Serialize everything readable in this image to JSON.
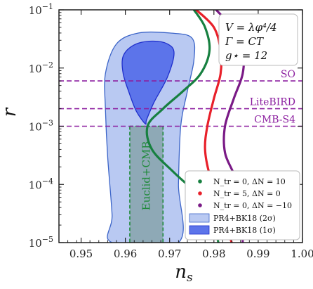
{
  "chart_data": {
    "type": "line",
    "xlabel": "n_s",
    "ylabel": "r",
    "xlim": [
      0.945,
      1.0
    ],
    "ylim_log10": [
      -5,
      -1
    ],
    "yscale": "log",
    "x_ticks": [
      "0.95",
      "0.96",
      "0.97",
      "0.98",
      "0.99",
      "1.00"
    ],
    "x_tick_values": [
      0.95,
      0.96,
      0.97,
      0.98,
      0.99,
      1.0
    ],
    "y_tick_exponents": [
      -5,
      -4,
      -3,
      -2,
      -1
    ],
    "model_box": [
      "V = λφ⁴/4",
      "Γ = CT",
      "g⋆ = 12"
    ],
    "colors": {
      "green": "#178040",
      "red": "#e8202a",
      "purple": "#7a1a86",
      "band2": "#b9c9f2",
      "band2_edge": "#3b64c8",
      "band1": "#5c74ea",
      "band1_edge": "#1f2fcc",
      "euclid_fill": "#86a3ab",
      "euclid_edge": "#1f8a3a",
      "line_dashed": "#8c1fa0"
    },
    "hlines": [
      {
        "label": "SO",
        "r": 0.006
      },
      {
        "label": "LiteBIRD",
        "r": 0.002
      },
      {
        "label": "CMB-S4",
        "r": 0.001
      }
    ],
    "euclid": {
      "label": "Euclid+CMB",
      "ns_min": 0.961,
      "ns_max": 0.9685,
      "r_max": 0.001
    },
    "contours": {
      "2sigma": {
        "label": "PR4+BK18 (2σ)",
        "points": [
          [
            0.957,
            1e-05
          ],
          [
            0.957,
            3e-05
          ],
          [
            0.956,
            0.0003
          ],
          [
            0.9555,
            0.002
          ],
          [
            0.9555,
            0.008
          ],
          [
            0.958,
            0.026
          ],
          [
            0.963,
            0.04
          ],
          [
            0.97,
            0.04
          ],
          [
            0.975,
            0.033
          ],
          [
            0.9755,
            0.014
          ],
          [
            0.974,
            0.004
          ],
          [
            0.9725,
            0.001
          ],
          [
            0.972,
            0.0001
          ],
          [
            0.972,
            1e-05
          ]
        ]
      },
      "1sigma": {
        "label": "PR4+BK18 (1σ)",
        "points": [
          [
            0.9645,
            0.0011
          ],
          [
            0.9625,
            0.0018
          ],
          [
            0.961,
            0.0035
          ],
          [
            0.9595,
            0.008
          ],
          [
            0.9595,
            0.016
          ],
          [
            0.962,
            0.025
          ],
          [
            0.966,
            0.029
          ],
          [
            0.9695,
            0.026
          ],
          [
            0.971,
            0.018
          ],
          [
            0.9695,
            0.007
          ],
          [
            0.9665,
            0.0026
          ],
          [
            0.9648,
            0.0013
          ]
        ]
      }
    },
    "series": [
      {
        "name": "N_tr = 0, ΔN = 10",
        "color": "green",
        "points": [
          [
            0.9755,
            0.1
          ],
          [
            0.978,
            0.05
          ],
          [
            0.979,
            0.02
          ],
          [
            0.977,
            0.008
          ],
          [
            0.973,
            0.004
          ],
          [
            0.9685,
            0.002
          ],
          [
            0.965,
            0.001
          ],
          [
            0.966,
            0.0004
          ],
          [
            0.971,
            0.00016
          ],
          [
            0.977,
            6e-05
          ],
          [
            0.9795,
            3e-05
          ],
          [
            0.9805,
            1.5e-05
          ],
          [
            0.981,
            1e-05
          ]
        ]
      },
      {
        "name": "N_tr = 5, ΔN = 0",
        "color": "red",
        "points": [
          [
            0.976,
            0.1
          ],
          [
            0.98,
            0.05
          ],
          [
            0.9815,
            0.02
          ],
          [
            0.9815,
            0.008
          ],
          [
            0.98,
            0.003
          ],
          [
            0.9785,
            0.001
          ],
          [
            0.978,
            0.0004
          ],
          [
            0.979,
            0.00015
          ],
          [
            0.981,
            6e-05
          ],
          [
            0.982,
            2.5e-05
          ],
          [
            0.9835,
            1.3e-05
          ],
          [
            0.984,
            1e-05
          ]
        ]
      },
      {
        "name": "N_tr = 0, ΔN = −10",
        "color": "purple",
        "points": [
          [
            0.9805,
            0.1
          ],
          [
            0.984,
            0.05
          ],
          [
            0.9865,
            0.02
          ],
          [
            0.9865,
            0.008
          ],
          [
            0.9845,
            0.003
          ],
          [
            0.9825,
            0.001
          ],
          [
            0.9825,
            0.00035
          ],
          [
            0.9845,
            0.00015
          ],
          [
            0.986,
            6e-05
          ],
          [
            0.9865,
            2.5e-05
          ],
          [
            0.9865,
            1.2e-05
          ],
          [
            0.9865,
            1e-05
          ]
        ]
      }
    ],
    "legend": [
      {
        "label": "N_tr = 0, ΔN = 10",
        "kind": "dot",
        "color": "green"
      },
      {
        "label": "N_tr = 5, ΔN = 0",
        "kind": "dot",
        "color": "red"
      },
      {
        "label": "N_tr = 0, ΔN = −10",
        "kind": "dot",
        "color": "purple"
      },
      {
        "label": "PR4+BK18 (2σ)",
        "kind": "patch",
        "color": "band2"
      },
      {
        "label": "PR4+BK18 (1σ)",
        "kind": "patch",
        "color": "band1"
      }
    ],
    "legend_position": "bottom-right"
  }
}
